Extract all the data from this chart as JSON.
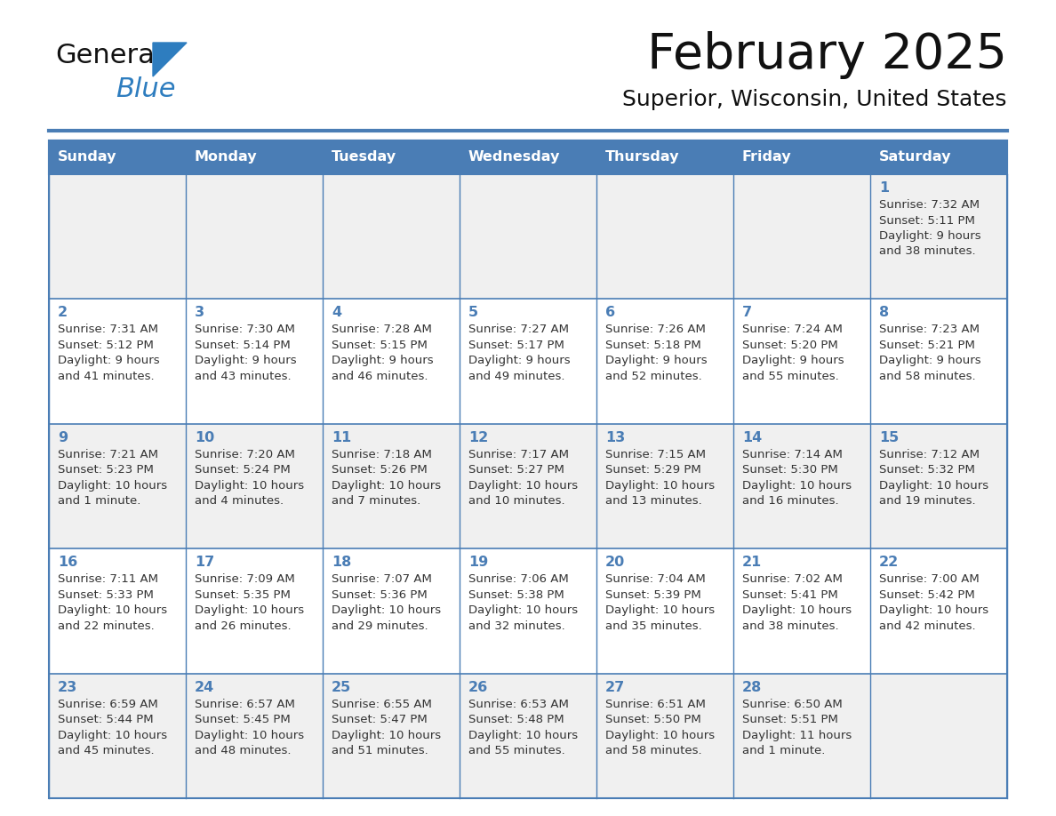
{
  "title": "February 2025",
  "subtitle": "Superior, Wisconsin, United States",
  "days_of_week": [
    "Sunday",
    "Monday",
    "Tuesday",
    "Wednesday",
    "Thursday",
    "Friday",
    "Saturday"
  ],
  "header_bg": "#4a7db5",
  "header_text": "#ffffff",
  "cell_bg_odd": "#f0f0f0",
  "cell_bg_even": "#ffffff",
  "border_color": "#4a7db5",
  "day_num_color": "#4a7db5",
  "text_color": "#333333",
  "logo_general_color": "#111111",
  "logo_blue_color": "#2e7dbf",
  "line_color": "#4a7db5",
  "calendar_data": [
    [
      {
        "day": null,
        "info": null
      },
      {
        "day": null,
        "info": null
      },
      {
        "day": null,
        "info": null
      },
      {
        "day": null,
        "info": null
      },
      {
        "day": null,
        "info": null
      },
      {
        "day": null,
        "info": null
      },
      {
        "day": 1,
        "info": "Sunrise: 7:32 AM\nSunset: 5:11 PM\nDaylight: 9 hours\nand 38 minutes."
      }
    ],
    [
      {
        "day": 2,
        "info": "Sunrise: 7:31 AM\nSunset: 5:12 PM\nDaylight: 9 hours\nand 41 minutes."
      },
      {
        "day": 3,
        "info": "Sunrise: 7:30 AM\nSunset: 5:14 PM\nDaylight: 9 hours\nand 43 minutes."
      },
      {
        "day": 4,
        "info": "Sunrise: 7:28 AM\nSunset: 5:15 PM\nDaylight: 9 hours\nand 46 minutes."
      },
      {
        "day": 5,
        "info": "Sunrise: 7:27 AM\nSunset: 5:17 PM\nDaylight: 9 hours\nand 49 minutes."
      },
      {
        "day": 6,
        "info": "Sunrise: 7:26 AM\nSunset: 5:18 PM\nDaylight: 9 hours\nand 52 minutes."
      },
      {
        "day": 7,
        "info": "Sunrise: 7:24 AM\nSunset: 5:20 PM\nDaylight: 9 hours\nand 55 minutes."
      },
      {
        "day": 8,
        "info": "Sunrise: 7:23 AM\nSunset: 5:21 PM\nDaylight: 9 hours\nand 58 minutes."
      }
    ],
    [
      {
        "day": 9,
        "info": "Sunrise: 7:21 AM\nSunset: 5:23 PM\nDaylight: 10 hours\nand 1 minute."
      },
      {
        "day": 10,
        "info": "Sunrise: 7:20 AM\nSunset: 5:24 PM\nDaylight: 10 hours\nand 4 minutes."
      },
      {
        "day": 11,
        "info": "Sunrise: 7:18 AM\nSunset: 5:26 PM\nDaylight: 10 hours\nand 7 minutes."
      },
      {
        "day": 12,
        "info": "Sunrise: 7:17 AM\nSunset: 5:27 PM\nDaylight: 10 hours\nand 10 minutes."
      },
      {
        "day": 13,
        "info": "Sunrise: 7:15 AM\nSunset: 5:29 PM\nDaylight: 10 hours\nand 13 minutes."
      },
      {
        "day": 14,
        "info": "Sunrise: 7:14 AM\nSunset: 5:30 PM\nDaylight: 10 hours\nand 16 minutes."
      },
      {
        "day": 15,
        "info": "Sunrise: 7:12 AM\nSunset: 5:32 PM\nDaylight: 10 hours\nand 19 minutes."
      }
    ],
    [
      {
        "day": 16,
        "info": "Sunrise: 7:11 AM\nSunset: 5:33 PM\nDaylight: 10 hours\nand 22 minutes."
      },
      {
        "day": 17,
        "info": "Sunrise: 7:09 AM\nSunset: 5:35 PM\nDaylight: 10 hours\nand 26 minutes."
      },
      {
        "day": 18,
        "info": "Sunrise: 7:07 AM\nSunset: 5:36 PM\nDaylight: 10 hours\nand 29 minutes."
      },
      {
        "day": 19,
        "info": "Sunrise: 7:06 AM\nSunset: 5:38 PM\nDaylight: 10 hours\nand 32 minutes."
      },
      {
        "day": 20,
        "info": "Sunrise: 7:04 AM\nSunset: 5:39 PM\nDaylight: 10 hours\nand 35 minutes."
      },
      {
        "day": 21,
        "info": "Sunrise: 7:02 AM\nSunset: 5:41 PM\nDaylight: 10 hours\nand 38 minutes."
      },
      {
        "day": 22,
        "info": "Sunrise: 7:00 AM\nSunset: 5:42 PM\nDaylight: 10 hours\nand 42 minutes."
      }
    ],
    [
      {
        "day": 23,
        "info": "Sunrise: 6:59 AM\nSunset: 5:44 PM\nDaylight: 10 hours\nand 45 minutes."
      },
      {
        "day": 24,
        "info": "Sunrise: 6:57 AM\nSunset: 5:45 PM\nDaylight: 10 hours\nand 48 minutes."
      },
      {
        "day": 25,
        "info": "Sunrise: 6:55 AM\nSunset: 5:47 PM\nDaylight: 10 hours\nand 51 minutes."
      },
      {
        "day": 26,
        "info": "Sunrise: 6:53 AM\nSunset: 5:48 PM\nDaylight: 10 hours\nand 55 minutes."
      },
      {
        "day": 27,
        "info": "Sunrise: 6:51 AM\nSunset: 5:50 PM\nDaylight: 10 hours\nand 58 minutes."
      },
      {
        "day": 28,
        "info": "Sunrise: 6:50 AM\nSunset: 5:51 PM\nDaylight: 11 hours\nand 1 minute."
      },
      {
        "day": null,
        "info": null
      }
    ]
  ]
}
